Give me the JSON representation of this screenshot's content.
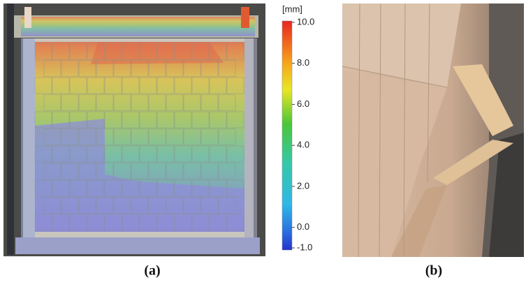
{
  "figure": {
    "colorbar": {
      "unit": "[mm]",
      "ticks": [
        {
          "value": 10,
          "label": "10.0"
        },
        {
          "value": 8,
          "label": "8.0"
        },
        {
          "value": 6,
          "label": "6.0"
        },
        {
          "value": 4,
          "label": "4.0"
        },
        {
          "value": 2,
          "label": "2.0"
        },
        {
          "value": 0,
          "label": "0.0"
        },
        {
          "value": -1,
          "label": "-1.0"
        }
      ]
    },
    "captions": [
      "(a)",
      "(b)"
    ]
  }
}
